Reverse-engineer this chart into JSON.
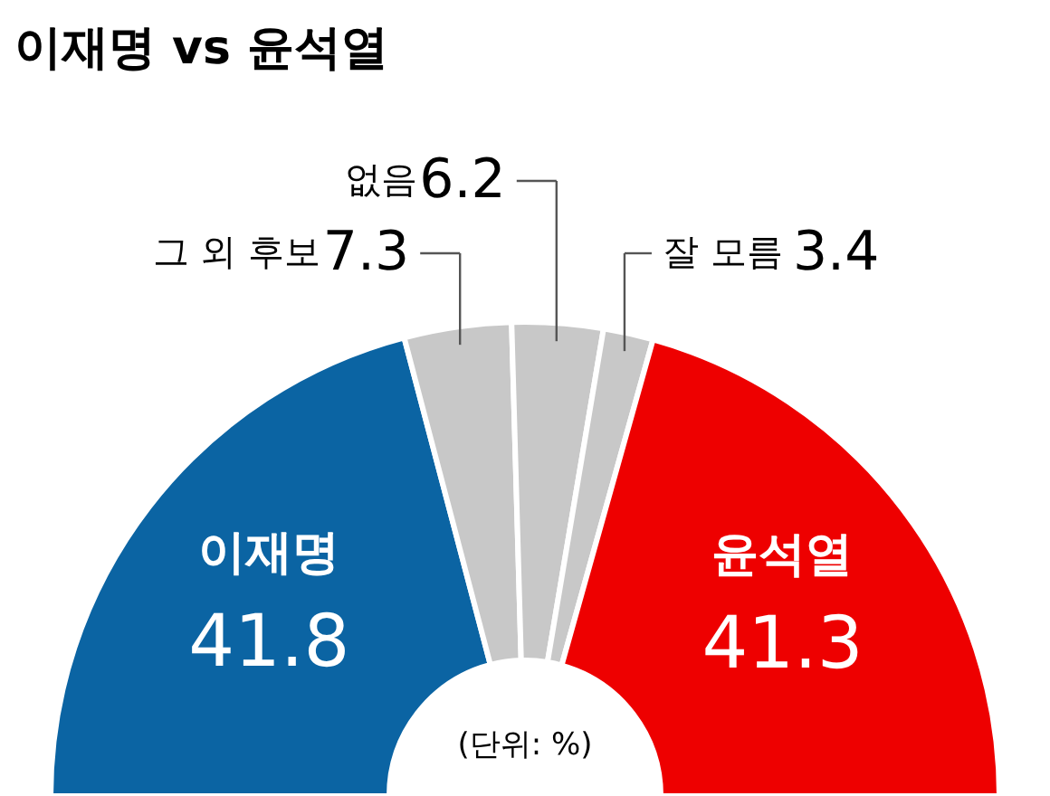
{
  "chart_data": {
    "type": "donut",
    "title": "이재명 vs 윤석열",
    "categories": [
      "이재명",
      "그 외 후보",
      "없음",
      "잘 모름",
      "윤석열"
    ],
    "values": [
      41.8,
      7.3,
      6.2,
      3.4,
      41.3
    ],
    "colors": [
      "#0b64a3",
      "#c8c8c8",
      "#c8c8c8",
      "#c8c8c8",
      "#ee0000"
    ],
    "annotations": [
      "(단위: %)"
    ],
    "data_labels": true
  }
}
